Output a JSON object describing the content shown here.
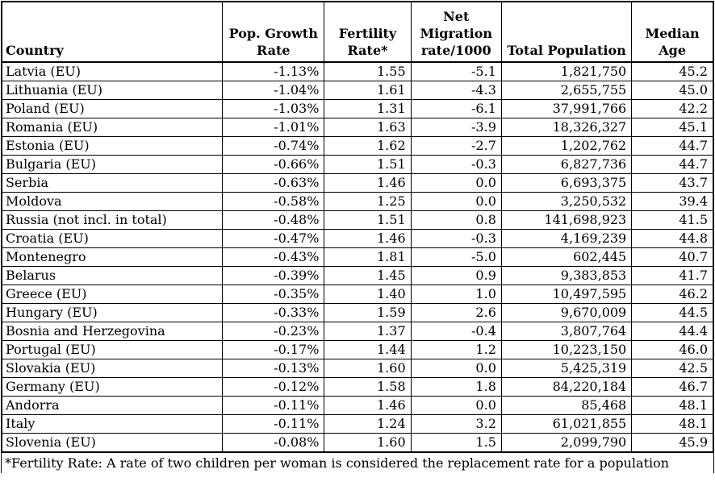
{
  "table": {
    "columns": [
      {
        "id": "country",
        "label": "Country",
        "align": "left"
      },
      {
        "id": "growth",
        "label": "Pop. Growth\nRate",
        "align": "center"
      },
      {
        "id": "fertility",
        "label": "Fertility\nRate*",
        "align": "center"
      },
      {
        "id": "migration",
        "label": "Net\nMigration\nrate/1000",
        "align": "center"
      },
      {
        "id": "population",
        "label": "Total Population",
        "align": "center"
      },
      {
        "id": "medage",
        "label": "Median\nAge",
        "align": "center"
      }
    ],
    "rows": [
      [
        "Latvia (EU)",
        "-1.13%",
        "1.55",
        "-5.1",
        "1,821,750",
        "45.2"
      ],
      [
        "Lithuania (EU)",
        "-1.04%",
        "1.61",
        "-4.3",
        "2,655,755",
        "45.0"
      ],
      [
        "Poland (EU)",
        "-1.03%",
        "1.31",
        "-6.1",
        "37,991,766",
        "42.2"
      ],
      [
        "Romania (EU)",
        "-1.01%",
        "1.63",
        "-3.9",
        "18,326,327",
        "45.1"
      ],
      [
        "Estonia (EU)",
        "-0.74%",
        "1.62",
        "-2.7",
        "1,202,762",
        "44.7"
      ],
      [
        "Bulgaria (EU)",
        "-0.66%",
        "1.51",
        "-0.3",
        "6,827,736",
        "44.7"
      ],
      [
        "Serbia",
        "-0.63%",
        "1.46",
        "0.0",
        "6,693,375",
        "43.7"
      ],
      [
        "Moldova",
        "-0.58%",
        "1.25",
        "0.0",
        "3,250,532",
        "39.4"
      ],
      [
        "Russia (not incl. in total)",
        "-0.48%",
        "1.51",
        "0.8",
        "141,698,923",
        "41.5"
      ],
      [
        "Croatia (EU)",
        "-0.47%",
        "1.46",
        "-0.3",
        "4,169,239",
        "44.8"
      ],
      [
        "Montenegro",
        "-0.43%",
        "1.81",
        "-5.0",
        "602,445",
        "40.7"
      ],
      [
        "Belarus",
        "-0.39%",
        "1.45",
        "0.9",
        "9,383,853",
        "41.7"
      ],
      [
        "Greece (EU)",
        "-0.35%",
        "1.40",
        "1.0",
        "10,497,595",
        "46.2"
      ],
      [
        "Hungary (EU)",
        "-0.33%",
        "1.59",
        "2.6",
        "9,670,009",
        "44.5"
      ],
      [
        "Bosnia and Herzegovina",
        "-0.23%",
        "1.37",
        "-0.4",
        "3,807,764",
        "44.4"
      ],
      [
        "Portugal (EU)",
        "-0.17%",
        "1.44",
        "1.2",
        "10,223,150",
        "46.0"
      ],
      [
        "Slovakia (EU)",
        "-0.13%",
        "1.60",
        "0.0",
        "5,425,319",
        "42.5"
      ],
      [
        "Germany (EU)",
        "-0.12%",
        "1.58",
        "1.8",
        "84,220,184",
        "46.7"
      ],
      [
        "Andorra",
        "-0.11%",
        "1.46",
        "0.0",
        "85,468",
        "48.1"
      ],
      [
        "Italy",
        "-0.11%",
        "1.24",
        "3.2",
        "61,021,855",
        "48.1"
      ],
      [
        "Slovenia (EU)",
        "-0.08%",
        "1.60",
        "1.5",
        "2,099,790",
        "45.9"
      ]
    ]
  },
  "footnote": "*Fertility Rate: A rate of two children per woman is considered the replacement rate for a population",
  "colors": {
    "border": "#000000",
    "text": "#000000",
    "background": "#ffffff"
  }
}
